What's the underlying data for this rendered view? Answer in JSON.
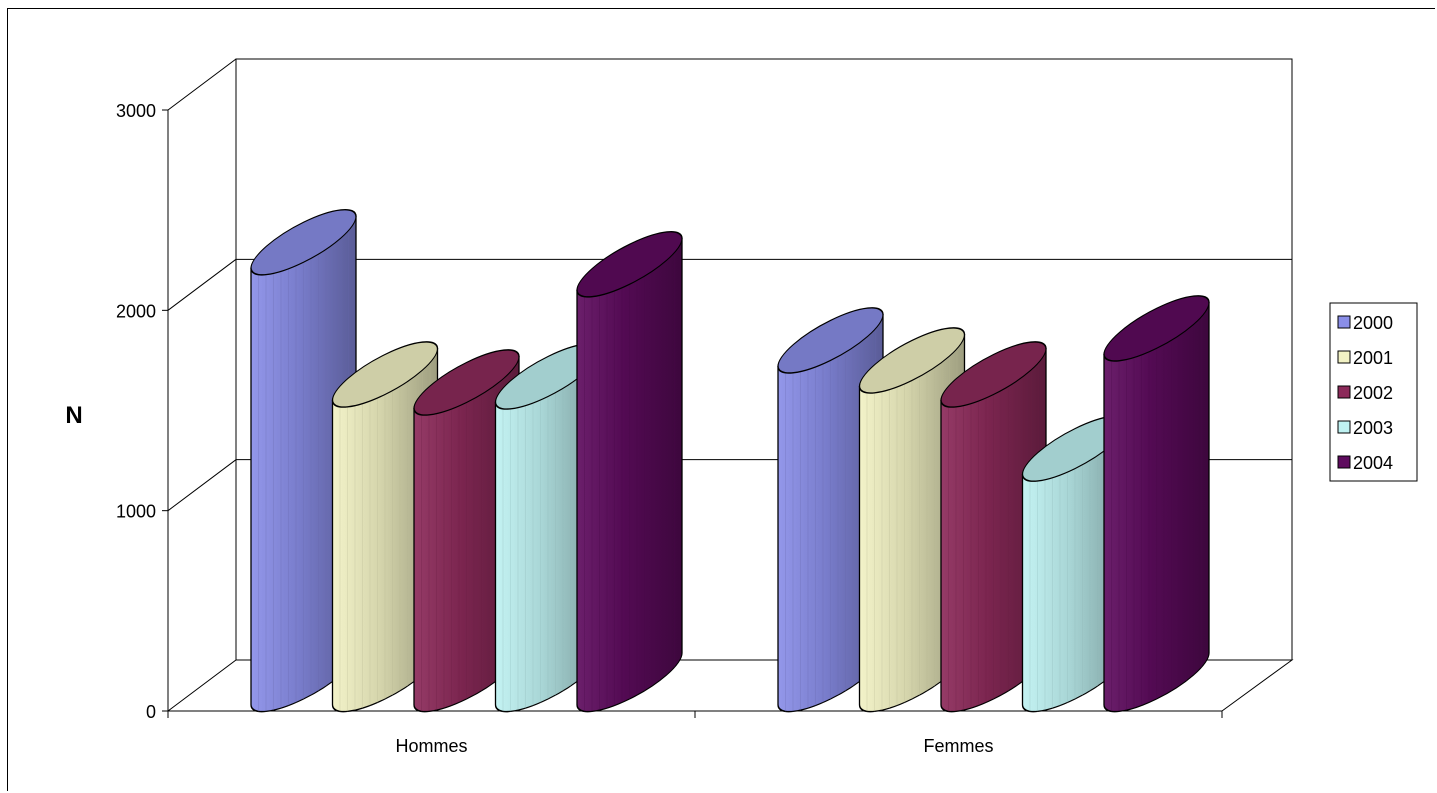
{
  "chart_data": {
    "type": "bar",
    "style": "3d-cylinder",
    "categories": [
      "Hommes",
      "Femmes"
    ],
    "series": [
      {
        "name": "2000",
        "values": [
          2230,
          1740
        ],
        "color": "#8a8ee8"
      },
      {
        "name": "2001",
        "values": [
          1570,
          1640
        ],
        "color": "#f2f2c4"
      },
      {
        "name": "2002",
        "values": [
          1530,
          1570
        ],
        "color": "#8c2a5a"
      },
      {
        "name": "2003",
        "values": [
          1560,
          1200
        ],
        "color": "#bff2f2"
      },
      {
        "name": "2004",
        "values": [
          2120,
          1800
        ],
        "color": "#5e0b5e"
      }
    ],
    "title": "",
    "xlabel": "",
    "ylabel": "N",
    "ylim": [
      0,
      3000
    ],
    "yticks": [
      "0",
      "1000",
      "2000",
      "3000"
    ],
    "grid": true,
    "legend": "right"
  }
}
